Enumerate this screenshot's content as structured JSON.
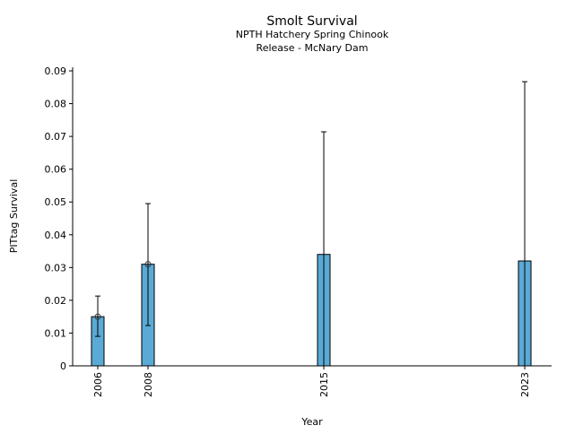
{
  "chart_data": {
    "type": "bar",
    "title": "Smolt Survival",
    "subtitle": [
      "NPTH Hatchery Spring Chinook",
      "Release - McNary Dam"
    ],
    "xlabel": "Year",
    "ylabel": "PITtag Survival",
    "xlim": [
      2005,
      2024.07
    ],
    "ylim": [
      0,
      0.0911
    ],
    "xticks": [
      2006,
      2008,
      2015,
      2023
    ],
    "yticks": [
      0,
      0.01,
      0.02,
      0.03,
      0.04,
      0.05,
      0.06,
      0.07,
      0.08,
      0.09
    ],
    "ytick_labels": [
      "0",
      "0.01",
      "0.02",
      "0.03",
      "0.04",
      "0.05",
      "0.06",
      "0.07",
      "0.08",
      "0.09"
    ],
    "grid": false,
    "bar_color": "#5aaad6",
    "bars": [
      {
        "year": 2006,
        "value": 0.015,
        "err_low": 0.009,
        "err_high": 0.0213,
        "marker": true
      },
      {
        "year": 2008,
        "value": 0.031,
        "err_low": 0.0123,
        "err_high": 0.0495,
        "marker": true
      },
      {
        "year": 2015,
        "value": 0.034,
        "err_low": 0,
        "err_high": 0.0714,
        "marker": false
      },
      {
        "year": 2023,
        "value": 0.032,
        "err_low": 0,
        "err_high": 0.0867,
        "marker": false
      }
    ]
  }
}
